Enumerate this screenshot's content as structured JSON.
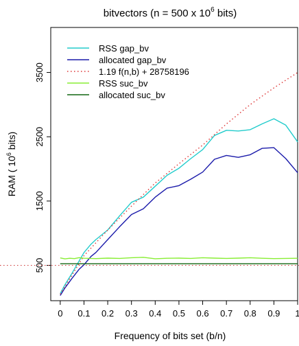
{
  "chart_data": {
    "type": "line",
    "title": "bitvectors (n = 500 x 10",
    "title_sup": "6",
    "title_tail": " bits)",
    "xlabel": "Frequency of bits set (b/n)",
    "ylabel_main": "RAM ( 10",
    "ylabel_sup": "6",
    "ylabel_tail": " bits)",
    "xlim": [
      -0.04,
      1.0
    ],
    "ylim": [
      -50,
      4200
    ],
    "x_ticks": [
      0,
      0.1,
      0.2,
      0.3,
      0.4,
      0.5,
      0.6,
      0.7,
      0.8,
      0.9,
      1
    ],
    "x_tick_labels": [
      "0",
      "0.1",
      "0.2",
      "0.3",
      "0.4",
      "0.5",
      "0.6",
      "0.7",
      "0.8",
      "0.9",
      "1"
    ],
    "y_ticks": [
      500,
      1500,
      2500,
      3500
    ],
    "y_tick_labels": [
      "500",
      "1500",
      "2500",
      "3500"
    ],
    "hline": {
      "y": 500,
      "color": "#cc3333",
      "dash": "dotted"
    },
    "legend_position": "top-left",
    "series": [
      {
        "name": "RSS gap_bv",
        "color": "#22cccc",
        "dash": "solid",
        "x": [
          0,
          0.02,
          0.05,
          0.08,
          0.1,
          0.13,
          0.15,
          0.2,
          0.25,
          0.3,
          0.35,
          0.4,
          0.45,
          0.5,
          0.55,
          0.6,
          0.65,
          0.7,
          0.75,
          0.8,
          0.85,
          0.9,
          0.95,
          1.0
        ],
        "y": [
          60,
          200,
          380,
          570,
          700,
          830,
          900,
          1050,
          1270,
          1480,
          1560,
          1730,
          1900,
          2010,
          2160,
          2300,
          2520,
          2600,
          2590,
          2610,
          2700,
          2780,
          2680,
          2420
        ]
      },
      {
        "name": "allocated gap_bv",
        "color": "#1a1aaa",
        "dash": "solid",
        "x": [
          0,
          0.02,
          0.05,
          0.08,
          0.1,
          0.13,
          0.15,
          0.2,
          0.25,
          0.3,
          0.35,
          0.4,
          0.45,
          0.5,
          0.55,
          0.6,
          0.65,
          0.7,
          0.75,
          0.8,
          0.85,
          0.9,
          0.95,
          1.0
        ],
        "y": [
          30,
          150,
          300,
          440,
          510,
          640,
          700,
          900,
          1100,
          1290,
          1380,
          1560,
          1700,
          1740,
          1840,
          1950,
          2150,
          2210,
          2180,
          2220,
          2320,
          2330,
          2160,
          1940
        ]
      },
      {
        "name": "1.19 f(n,b) +  28758196",
        "color": "#dd3333",
        "dash": "dotted",
        "x": [
          0,
          0.1,
          0.2,
          0.3,
          0.4,
          0.5,
          0.6,
          0.7,
          0.8,
          0.9,
          1.0
        ],
        "y": [
          50,
          650,
          1050,
          1420,
          1780,
          2080,
          2370,
          2700,
          3000,
          3260,
          3500
        ]
      },
      {
        "name": "RSS suc_bv",
        "color": "#88ee33",
        "dash": "solid",
        "x": [
          0,
          0.02,
          0.04,
          0.06,
          0.08,
          0.1,
          0.15,
          0.2,
          0.25,
          0.3,
          0.35,
          0.4,
          0.45,
          0.5,
          0.55,
          0.6,
          0.65,
          0.7,
          0.75,
          0.8,
          0.85,
          0.9,
          0.95,
          1.0
        ],
        "y": [
          615,
          600,
          610,
          605,
          620,
          610,
          605,
          612,
          608,
          618,
          625,
          602,
          610,
          612,
          608,
          618,
          612,
          608,
          612,
          618,
          610,
          605,
          608,
          610
        ]
      },
      {
        "name": "allocated suc_bv",
        "color": "#116611",
        "dash": "solid",
        "x": [
          0,
          1.0
        ],
        "y": [
          525,
          525
        ]
      }
    ]
  }
}
